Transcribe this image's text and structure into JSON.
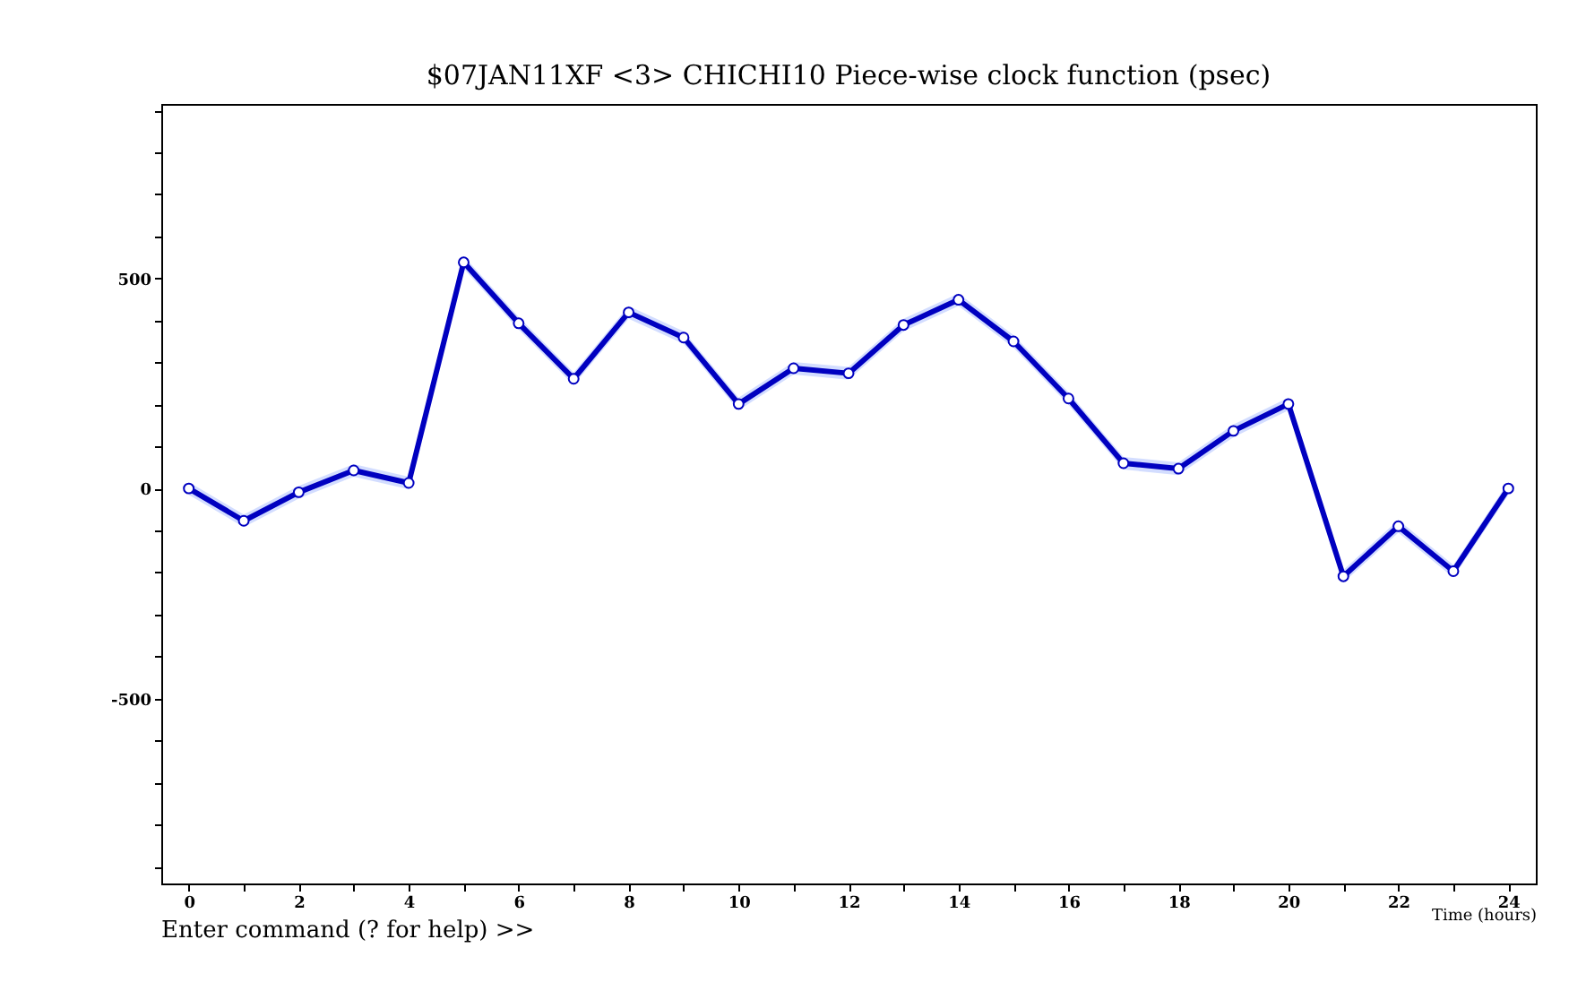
{
  "chart_data": {
    "type": "line",
    "title": "$07JAN11XF <3>   CHICHI10   Piece-wise clock function (psec)",
    "xlabel": "Time (hours)",
    "annotations": [
      "Enter command (? for help) >>"
    ],
    "x": [
      0,
      1,
      2,
      3,
      4,
      5,
      6,
      7,
      8,
      9,
      10,
      11,
      12,
      13,
      14,
      15,
      16,
      17,
      18,
      19,
      20,
      21,
      22,
      23,
      24
    ],
    "series": [
      {
        "color": "#0000c0",
        "values": [
          0,
          -77,
          -9,
          43,
          13,
          538,
          393,
          261,
          419,
          359,
          201,
          286,
          274,
          389,
          449,
          350,
          214,
          60,
          47,
          137,
          201,
          -209,
          -90,
          -197,
          0
        ],
        "lower": [
          -15,
          -92,
          -24,
          28,
          -2,
          523,
          378,
          246,
          404,
          344,
          186,
          271,
          259,
          374,
          434,
          335,
          199,
          45,
          32,
          122,
          186,
          -224,
          -105,
          -212,
          -15
        ],
        "upper": [
          15,
          -62,
          6,
          58,
          28,
          553,
          408,
          276,
          434,
          374,
          216,
          301,
          289,
          404,
          464,
          365,
          229,
          75,
          62,
          152,
          216,
          -194,
          -75,
          -182,
          15
        ]
      }
    ],
    "xlim": [
      -0.5,
      24.5
    ],
    "ylim": [
      -940,
      915
    ],
    "xticks": [
      0,
      {
        "value": 1,
        "label": null
      },
      2,
      {
        "value": 3,
        "label": null
      },
      4,
      {
        "value": 5,
        "label": null
      },
      6,
      {
        "value": 7,
        "label": null
      },
      8,
      {
        "value": 9,
        "label": null
      },
      10,
      {
        "value": 11,
        "label": null
      },
      12,
      {
        "value": 13,
        "label": null
      },
      14,
      {
        "value": 15,
        "label": null
      },
      16,
      {
        "value": 17,
        "label": null
      },
      18,
      {
        "value": 19,
        "label": null
      },
      20,
      {
        "value": 21,
        "label": null
      },
      22,
      {
        "value": 23,
        "label": null
      },
      24
    ],
    "yticks": [
      {
        "value": -900,
        "label": null
      },
      {
        "value": -800,
        "label": null
      },
      {
        "value": -700,
        "label": null
      },
      {
        "value": -600,
        "label": null
      },
      -500,
      {
        "value": -400,
        "label": null
      },
      {
        "value": -300,
        "label": null
      },
      {
        "value": -200,
        "label": null
      },
      {
        "value": -100,
        "label": null
      },
      0,
      {
        "value": 100,
        "label": null
      },
      {
        "value": 200,
        "label": null
      },
      {
        "value": 300,
        "label": null
      },
      {
        "value": 400,
        "label": null
      },
      500,
      {
        "value": 600,
        "label": null
      },
      {
        "value": 700,
        "label": null
      },
      {
        "value": 800,
        "label": null
      },
      {
        "value": 900,
        "label": null
      }
    ],
    "grid": false,
    "marker": "circle",
    "line_style": "solid"
  }
}
